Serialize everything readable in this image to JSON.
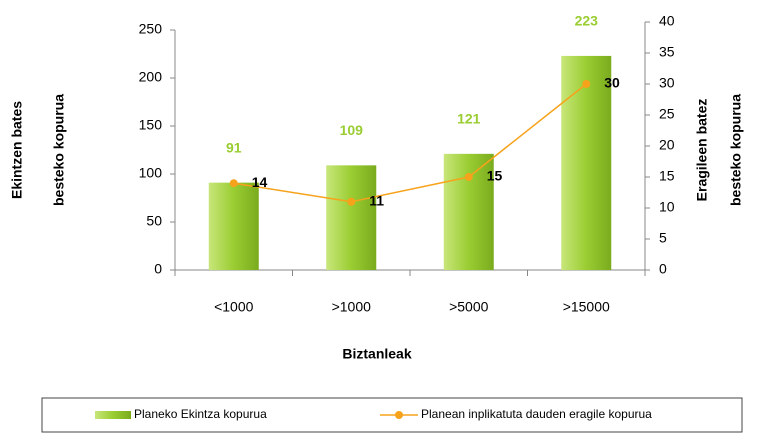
{
  "chart_data": {
    "type": "bar_line",
    "categories": [
      "<1000",
      ">1000",
      ">5000",
      ">15000"
    ],
    "series": [
      {
        "name": "Planeko Ekintza kopurua",
        "color": "#9acd32",
        "values": [
          91,
          109,
          121,
          223
        ]
      },
      {
        "name": "Planean inplikatuta dauden eragile kopurua",
        "color": "#f7a21b",
        "values": [
          14,
          11,
          15,
          30
        ],
        "axis": "y2"
      }
    ],
    "ylim": [
      0,
      250
    ],
    "yticks": [
      0,
      50,
      100,
      150,
      200,
      250
    ],
    "y2lim": [
      0,
      40
    ],
    "y2ticks": [
      0,
      5,
      10,
      15,
      20,
      25,
      30,
      35,
      40
    ],
    "xlabel": "Biztanleak",
    "ylabel": [
      "Ekintzen bates",
      "besteko kopurua"
    ],
    "y2label": [
      "Eragileen batez",
      "besteko kopurua"
    ],
    "legend": "bottom"
  }
}
